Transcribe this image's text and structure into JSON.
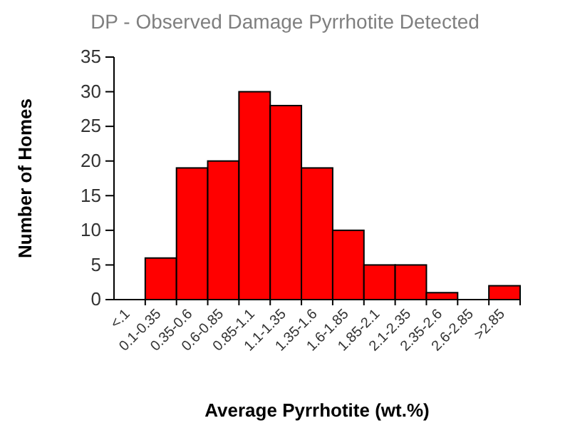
{
  "chart_data": {
    "type": "bar",
    "title": "DP - Observed Damage Pyrrhotite Detected",
    "xlabel": "Average Pyrrhotite (wt.%)",
    "ylabel": "Number of Homes",
    "categories": [
      "<.1",
      "0.1-0.35",
      "0.35-0.6",
      "0.6-0.85",
      "0.85-1.1",
      "1.1-1.35",
      "1.35-1.6",
      "1.6-1.85",
      "1.85-2.1",
      "2.1-2.35",
      "2.35-2.6",
      "2.6-2.85",
      ">2.85"
    ],
    "values": [
      0,
      6,
      19,
      20,
      30,
      28,
      19,
      10,
      5,
      5,
      1,
      0,
      2
    ],
    "color": "#ff0000",
    "ylim": [
      0,
      35
    ],
    "yticks": [
      0,
      5,
      10,
      15,
      20,
      25,
      30,
      35
    ],
    "grid": false
  }
}
